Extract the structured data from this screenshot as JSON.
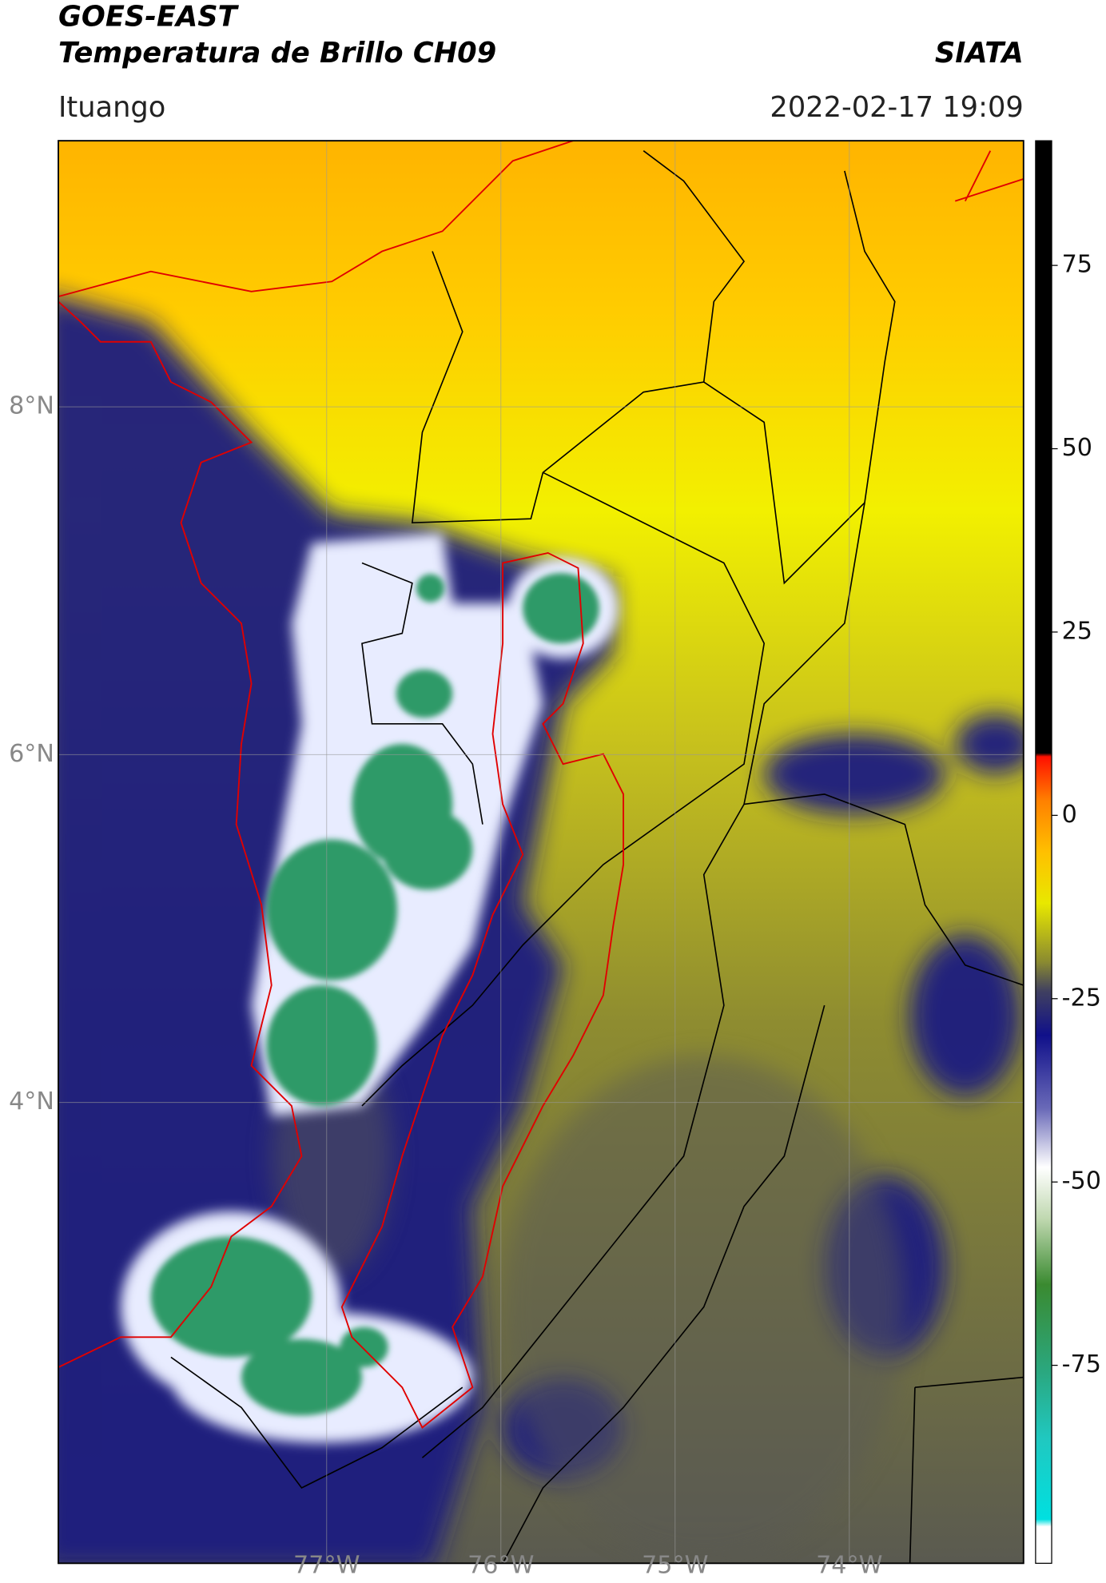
{
  "header": {
    "title": "GOES-EAST",
    "subtitle": "Temperatura de Brillo CH09",
    "organization": "SIATA",
    "location": "Ituango",
    "datetime": "2022-02-17 19:09"
  },
  "map": {
    "xlim": [
      -78.54,
      -73.0
    ],
    "ylim": [
      1.35,
      9.53
    ],
    "xticks": [
      {
        "value": -77,
        "label": "77°W"
      },
      {
        "value": -76,
        "label": "76°W"
      },
      {
        "value": -75,
        "label": "75°W"
      },
      {
        "value": -74,
        "label": "74°W"
      }
    ],
    "yticks": [
      {
        "value": 8,
        "label": "8°N"
      },
      {
        "value": 6,
        "label": "6°N"
      },
      {
        "value": 4,
        "label": "4°N"
      }
    ],
    "grid": true
  },
  "colorbar": {
    "lim": [
      -102,
      92
    ],
    "ticks": [
      75,
      50,
      25,
      0,
      -25,
      -50,
      -75
    ],
    "colormap": [
      {
        "value": -102,
        "color": "#ffffff"
      },
      {
        "value": -97,
        "color": "#ffffff"
      },
      {
        "value": -96,
        "color": "#00e0e0"
      },
      {
        "value": -85,
        "color": "#20c8c0"
      },
      {
        "value": -76,
        "color": "#2aa880"
      },
      {
        "value": -64,
        "color": "#3a8a30"
      },
      {
        "value": -55,
        "color": "#c0d8b0"
      },
      {
        "value": -48,
        "color": "#ffffff"
      },
      {
        "value": -40,
        "color": "#6a6ab8"
      },
      {
        "value": -30,
        "color": "#10108a"
      },
      {
        "value": -24,
        "color": "#404060"
      },
      {
        "value": -20,
        "color": "#8a8a30"
      },
      {
        "value": -12,
        "color": "#e8e800"
      },
      {
        "value": -5,
        "color": "#ffc000"
      },
      {
        "value": 2,
        "color": "#ff8000"
      },
      {
        "value": 8,
        "color": "#ff1000"
      },
      {
        "value": 8.5,
        "color": "#000000"
      },
      {
        "value": 92,
        "color": "#000000"
      }
    ]
  }
}
